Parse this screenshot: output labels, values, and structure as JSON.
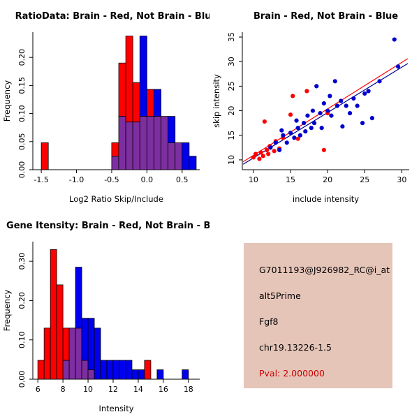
{
  "chart_data": [
    {
      "type": "bar",
      "chart_kind": "overlaid-histogram",
      "title": "RatioData: Brain - Red, Not Brain - Blue",
      "xlabel": "Log2 Ratio Skip/Include",
      "ylabel": "Frequency",
      "xlim": [
        -1.62,
        0.75
      ],
      "ylim": [
        0,
        0.245
      ],
      "bin_width": 0.1,
      "grid": false,
      "xticks": [
        {
          "v": -1.5,
          "label": "-1.5"
        },
        {
          "v": -1.0,
          "label": "-1.0"
        },
        {
          "v": -0.5,
          "label": "-0.5"
        },
        {
          "v": 0.0,
          "label": "0.0"
        },
        {
          "v": 0.5,
          "label": "0.5"
        }
      ],
      "yticks": [
        {
          "v": 0.0,
          "label": "0.00"
        },
        {
          "v": 0.05,
          "label": "0.05"
        },
        {
          "v": 0.1,
          "label": "0.10"
        },
        {
          "v": 0.15,
          "label": "0.15"
        },
        {
          "v": 0.2,
          "label": "0.20"
        }
      ],
      "overlap_color": "#7D2EA0",
      "series": [
        {
          "name": "Brain",
          "color": "#FF0000",
          "bins": [
            [
              -1.5,
              0.048
            ],
            [
              -0.5,
              0.048
            ],
            [
              -0.4,
              0.19
            ],
            [
              -0.3,
              0.238
            ],
            [
              -0.2,
              0.155
            ],
            [
              -0.1,
              0.095
            ],
            [
              0.0,
              0.143
            ],
            [
              0.1,
              0.095
            ],
            [
              0.2,
              0.095
            ],
            [
              0.3,
              0.048
            ],
            [
              0.4,
              0.048
            ]
          ]
        },
        {
          "name": "Not Brain",
          "color": "#0000EE",
          "bins": [
            [
              -0.5,
              0.024
            ],
            [
              -0.4,
              0.095
            ],
            [
              -0.3,
              0.085
            ],
            [
              -0.2,
              0.085
            ],
            [
              -0.1,
              0.238
            ],
            [
              0.0,
              0.095
            ],
            [
              0.1,
              0.143
            ],
            [
              0.2,
              0.095
            ],
            [
              0.3,
              0.095
            ],
            [
              0.4,
              0.048
            ],
            [
              0.5,
              0.048
            ],
            [
              0.6,
              0.024
            ]
          ]
        }
      ]
    },
    {
      "type": "scatter",
      "title": "Brain - Red, Not Brain - Blue",
      "xlabel": "include intensity",
      "ylabel": "skip intensity",
      "xlim": [
        8.5,
        31
      ],
      "ylim": [
        8,
        36
      ],
      "grid": false,
      "xticks": [
        {
          "v": 10,
          "label": "10"
        },
        {
          "v": 15,
          "label": "15"
        },
        {
          "v": 20,
          "label": "20"
        },
        {
          "v": 25,
          "label": "25"
        },
        {
          "v": 30,
          "label": "30"
        }
      ],
      "yticks": [
        {
          "v": 10,
          "label": "10"
        },
        {
          "v": 15,
          "label": "15"
        },
        {
          "v": 20,
          "label": "20"
        },
        {
          "v": 25,
          "label": "25"
        },
        {
          "v": 30,
          "label": "30"
        },
        {
          "v": 35,
          "label": "35"
        }
      ],
      "series": [
        {
          "name": "Brain",
          "color": "#FF0000",
          "points": [
            [
              10,
              10.5
            ],
            [
              10.3,
              11.2
            ],
            [
              10.8,
              10.2
            ],
            [
              11,
              11.5
            ],
            [
              11.3,
              10.8
            ],
            [
              11.8,
              12
            ],
            [
              12,
              11.2
            ],
            [
              12.2,
              12.8
            ],
            [
              12.8,
              11.8
            ],
            [
              13,
              13.8
            ],
            [
              13.5,
              12.3
            ],
            [
              14,
              14.5
            ],
            [
              15,
              19.2
            ],
            [
              15.3,
              23
            ],
            [
              16,
              14.3
            ],
            [
              17.2,
              24
            ],
            [
              19.5,
              12
            ],
            [
              11.5,
              17.8
            ],
            [
              20,
              19.5
            ]
          ]
        },
        {
          "name": "Not Brain",
          "color": "#0000CD",
          "points": [
            [
              12.3,
              12.5
            ],
            [
              13,
              13.5
            ],
            [
              13.5,
              12
            ],
            [
              13.8,
              16
            ],
            [
              14,
              15
            ],
            [
              14.5,
              13.5
            ],
            [
              15,
              15.5
            ],
            [
              15.5,
              14.5
            ],
            [
              15.8,
              18
            ],
            [
              16,
              16.5
            ],
            [
              16.3,
              15
            ],
            [
              16.8,
              17.5
            ],
            [
              17,
              15.8
            ],
            [
              17.3,
              19
            ],
            [
              17.8,
              16.5
            ],
            [
              18,
              20
            ],
            [
              18.2,
              17.5
            ],
            [
              18.5,
              25
            ],
            [
              19,
              19.5
            ],
            [
              19.2,
              16.5
            ],
            [
              19.5,
              21.5
            ],
            [
              20,
              20
            ],
            [
              20.3,
              23
            ],
            [
              20.5,
              19
            ],
            [
              21,
              26
            ],
            [
              21.3,
              21
            ],
            [
              21.8,
              22
            ],
            [
              22,
              16.8
            ],
            [
              22.5,
              21
            ],
            [
              23,
              19.5
            ],
            [
              23.5,
              22.5
            ],
            [
              24,
              21
            ],
            [
              24.7,
              17.5
            ],
            [
              25,
              23.5
            ],
            [
              25.5,
              24
            ],
            [
              26,
              18.5
            ],
            [
              27,
              26
            ],
            [
              29,
              34.5
            ],
            [
              29.5,
              29
            ]
          ]
        }
      ],
      "fit_lines": [
        {
          "name": "brain-fit",
          "color": "#FF0000",
          "from": [
            8.6,
            9.6
          ],
          "to": [
            30.8,
            30.6
          ]
        },
        {
          "name": "notbrain-fit",
          "color": "#00008B",
          "from": [
            8.6,
            9.1
          ],
          "to": [
            30.8,
            29.6
          ]
        }
      ]
    },
    {
      "type": "bar",
      "chart_kind": "overlaid-histogram",
      "title": "Gene Itensity: Brain - Red, Not Brain - Blue",
      "xlabel": "Intensity",
      "ylabel": "Frequency",
      "xlim": [
        5.6,
        18.9
      ],
      "ylim": [
        0,
        0.35
      ],
      "bin_width": 0.5,
      "grid": false,
      "xticks": [
        {
          "v": 6,
          "label": "6"
        },
        {
          "v": 8,
          "label": "8"
        },
        {
          "v": 10,
          "label": "10"
        },
        {
          "v": 12,
          "label": "12"
        },
        {
          "v": 14,
          "label": "14"
        },
        {
          "v": 16,
          "label": "16"
        },
        {
          "v": 18,
          "label": "18"
        }
      ],
      "yticks": [
        {
          "v": 0.0,
          "label": "0.00"
        },
        {
          "v": 0.1,
          "label": "0.10"
        },
        {
          "v": 0.2,
          "label": "0.20"
        },
        {
          "v": 0.3,
          "label": "0.30"
        }
      ],
      "overlap_color": "#7D2EA0",
      "series": [
        {
          "name": "Brain",
          "color": "#FF0000",
          "bins": [
            [
              6.0,
              0.048
            ],
            [
              6.5,
              0.13
            ],
            [
              7.0,
              0.33
            ],
            [
              7.5,
              0.24
            ],
            [
              8.0,
              0.13
            ],
            [
              8.5,
              0.13
            ],
            [
              9.0,
              0.13
            ],
            [
              9.5,
              0.048
            ],
            [
              10.0,
              0.024
            ],
            [
              14.5,
              0.048
            ]
          ]
        },
        {
          "name": "Not Brain",
          "color": "#0000EE",
          "bins": [
            [
              8.0,
              0.048
            ],
            [
              8.5,
              0.13
            ],
            [
              9.0,
              0.285
            ],
            [
              9.5,
              0.155
            ],
            [
              10.0,
              0.155
            ],
            [
              10.5,
              0.13
            ],
            [
              11.0,
              0.048
            ],
            [
              11.5,
              0.048
            ],
            [
              12.0,
              0.048
            ],
            [
              12.5,
              0.048
            ],
            [
              13.0,
              0.048
            ],
            [
              13.5,
              0.024
            ],
            [
              14.0,
              0.024
            ],
            [
              15.5,
              0.024
            ],
            [
              17.5,
              0.024
            ]
          ]
        }
      ]
    }
  ],
  "info_panel": {
    "bg": "#E6C5B9",
    "lines": [
      {
        "text": "G7011193@J926982_RC@i_at",
        "color": "#000000"
      },
      {
        "text": "alt5Prime",
        "color": "#000000"
      },
      {
        "text": "Fgf8",
        "color": "#000000"
      },
      {
        "text": "chr19.13226-1.5",
        "color": "#000000"
      },
      {
        "text": "Pval: 2.000000",
        "color": "#CC0000"
      }
    ]
  }
}
